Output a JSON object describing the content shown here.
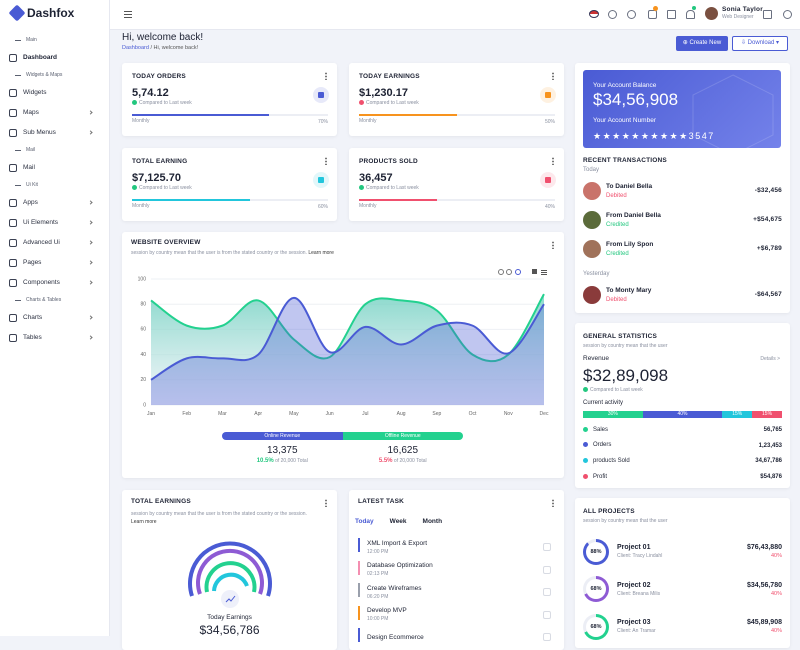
{
  "brand": "Dashfox",
  "sidebar": [
    {
      "section": "Main",
      "items": [
        "Dashboard"
      ]
    },
    {
      "section": "Widgets & Maps",
      "items": [
        "Widgets",
        "Maps",
        "Sub Menus"
      ]
    },
    {
      "section": "Mail",
      "items": [
        "Mail"
      ]
    },
    {
      "section": "Ui Kit",
      "items": [
        "Apps",
        "Ui Elements",
        "Advanced Ui",
        "Pages",
        "Components"
      ]
    },
    {
      "section": "Charts & Tables",
      "items": [
        "Charts",
        "Tables"
      ]
    }
  ],
  "header": {
    "user_name": "Sonia Taylor",
    "user_role": "Web Designer"
  },
  "page": {
    "title": "Hi, welcome back!",
    "breadcrumb": [
      "Dashboard",
      "Hi, welcome back!"
    ],
    "buttons": [
      "Create New",
      "Download"
    ]
  },
  "stats": [
    {
      "title": "TODAY ORDERS",
      "value": "5,74.12",
      "compare": "Compared to Last week",
      "trend_color": "#23c77f",
      "period": "Monthly",
      "progress": "70%",
      "color": "#4a5bd4"
    },
    {
      "title": "TODAY EARNINGS",
      "value": "$1,230.17",
      "compare": "Compared to Last week",
      "trend_color": "#f0506e",
      "period": "Monthly",
      "progress": "50%",
      "color": "#f7931e"
    },
    {
      "title": "TOTAL EARNING",
      "value": "$7,125.70",
      "compare": "Compared to Last week",
      "trend_color": "#23c77f",
      "period": "Monthly",
      "progress": "60%",
      "color": "#22c6dc"
    },
    {
      "title": "PRODUCTS SOLD",
      "value": "36,457",
      "compare": "Compared to Last week",
      "trend_color": "#23c77f",
      "period": "Monthly",
      "progress": "40%",
      "color": "#f0506e"
    }
  ],
  "account": {
    "balance_label": "Your Account Balance",
    "balance": "$34,56,908",
    "number_label": "Your Account Number",
    "number": "★★★★★★★★★★3547"
  },
  "transactions": {
    "title": "RECENT TRANSACTIONS",
    "groups": [
      {
        "label": "Today",
        "items": [
          {
            "name": "To Daniel Bella",
            "status": "Debited",
            "status_color": "#f0506e",
            "amount": "-$32,456",
            "avatar": "#c9736a"
          },
          {
            "name": "From Daniel Bella",
            "status": "Credited",
            "status_color": "#23c77f",
            "amount": "+$54,675",
            "avatar": "#5b6b3a"
          },
          {
            "name": "From Lily Spon",
            "status": "Credited",
            "status_color": "#23c77f",
            "amount": "+$6,789",
            "avatar": "#a0725a"
          }
        ]
      },
      {
        "label": "Yesterday",
        "items": [
          {
            "name": "To Monty Mary",
            "status": "Debited",
            "status_color": "#f0506e",
            "amount": "-$64,567",
            "avatar": "#8a3b3b"
          }
        ]
      }
    ]
  },
  "chart_data": {
    "type": "line",
    "title": "WEBSITE OVERVIEW",
    "subtitle": "session by country mean that the user is from the stated country or the session.",
    "link": "Learn more",
    "categories": [
      "Jan",
      "Feb",
      "Mar",
      "Apr",
      "May",
      "Jun",
      "Jul",
      "Aug",
      "Sep",
      "Oct",
      "Nov",
      "Dec"
    ],
    "ylim": [
      0,
      100
    ],
    "yticks": [
      0,
      20,
      40,
      60,
      80,
      100
    ],
    "grid": true,
    "series": [
      {
        "name": "Online Revenue",
        "color": "#4a5bd4",
        "values": [
          20,
          37,
          37,
          40,
          85,
          42,
          62,
          48,
          63,
          63,
          41,
          80
        ]
      },
      {
        "name": "Offline Revenue",
        "color": "#23d18f",
        "values": [
          83,
          63,
          63,
          83,
          52,
          38,
          80,
          83,
          75,
          40,
          40,
          88
        ]
      }
    ]
  },
  "overview_summary": [
    {
      "value": "13,375",
      "change": "10.5%",
      "change_color": "#23c77f",
      "note": "of 20,000 Total"
    },
    {
      "value": "16,625",
      "change": "5.5%",
      "change_color": "#f0506e",
      "note": "of 20,000 Total"
    }
  ],
  "general_statistics": {
    "title": "GENERAL STATISTICS",
    "subtitle": "session by country mean that the user",
    "revenue_label": "Revenue",
    "details": "Details >",
    "revenue": "$32,89,098",
    "compare": "Compared to Last week",
    "activity_label": "Current activity",
    "activity": [
      {
        "label": "30%",
        "color": "#23d18f"
      },
      {
        "label": "40%",
        "color": "#4a5bd4"
      },
      {
        "label": "15%",
        "color": "#22c6dc"
      },
      {
        "label": "15%",
        "color": "#f0506e"
      }
    ],
    "items": [
      {
        "name": "Sales",
        "value": "56,765",
        "color": "#23d18f"
      },
      {
        "name": "Orders",
        "value": "1,23,453",
        "color": "#4a5bd4"
      },
      {
        "name": "products Sold",
        "value": "34,67,786",
        "color": "#22c6dc"
      },
      {
        "name": "Profit",
        "value": "$54,876",
        "color": "#f0506e"
      }
    ]
  },
  "total_earnings": {
    "title": "TOTAL EARNINGS",
    "subtitle": "session by country mean that the user is from the stated country or the session.",
    "link": "Learn more",
    "label": "Today Earnings",
    "value": "$34,56,786"
  },
  "latest_task": {
    "title": "LATEST TASK",
    "tabs": [
      "Today",
      "Week",
      "Month"
    ],
    "tasks": [
      {
        "title": "XML Import & Export",
        "time": "12:00 PM",
        "color": "#4a5bd4"
      },
      {
        "title": "Database Optimization",
        "time": "02:13 PM",
        "color": "#f48fb1"
      },
      {
        "title": "Create Wireframes",
        "time": "06:20 PM",
        "color": "#9aa0ac"
      },
      {
        "title": "Develop MVP",
        "time": "10:00 PM",
        "color": "#f7931e"
      },
      {
        "title": "Design Ecommerce",
        "color": "#4a5bd4"
      }
    ]
  },
  "all_projects": {
    "title": "ALL PROJECTS",
    "subtitle": "session by country mean that the user",
    "projects": [
      {
        "ring": "88%",
        "ring_color": "#4a5bd4",
        "name": "Project 01",
        "client": "Client: Tracy Lindahl",
        "amount": "$76,43,880",
        "change": "40%"
      },
      {
        "ring": "68%",
        "ring_color": "#8e5bd4",
        "name": "Project 02",
        "client": "Client: Breana Milis",
        "amount": "$34,56,780",
        "change": "40%"
      },
      {
        "ring": "68%",
        "ring_color": "#23d18f",
        "name": "Project 03",
        "client": "Client: An Tramar",
        "amount": "$45,89,908",
        "change": "40%"
      }
    ]
  }
}
